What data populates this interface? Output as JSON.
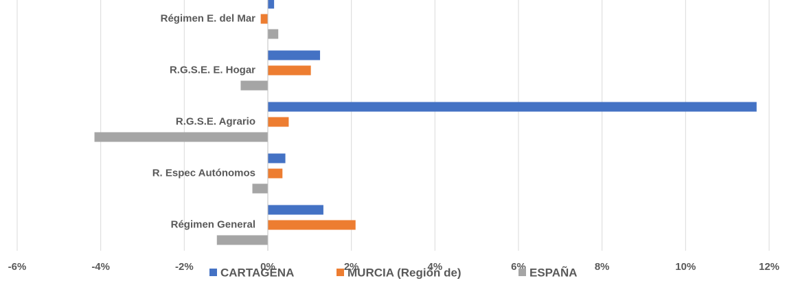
{
  "chart_data": {
    "type": "hbar",
    "categories": [
      "Régimen E. del Mar",
      "R.G.S.E. E. Hogar",
      "R.G.S.E. Agrario",
      "R. Espec  Autónomos",
      "Régimen General"
    ],
    "series": [
      {
        "name": "CARTAGENA",
        "color": "#4472c4",
        "values": [
          0.15,
          1.25,
          11.7,
          0.42,
          1.33
        ]
      },
      {
        "name": "MURCIA (Región de)",
        "color": "#ed7d31",
        "values": [
          -0.17,
          1.03,
          0.5,
          0.35,
          2.1
        ]
      },
      {
        "name": "ESPAÑA",
        "color": "#a5a5a5",
        "values": [
          0.25,
          -0.65,
          -4.15,
          -0.37,
          -1.22
        ]
      }
    ],
    "xlim": [
      -6,
      12
    ],
    "xticks": [
      {
        "value": -6,
        "label": "-6%"
      },
      {
        "value": -4,
        "label": "-4%"
      },
      {
        "value": -2,
        "label": "-2%"
      },
      {
        "value": 0,
        "label": "0%"
      },
      {
        "value": 2,
        "label": "2%"
      },
      {
        "value": 4,
        "label": "4%"
      },
      {
        "value": 6,
        "label": "6%"
      },
      {
        "value": 8,
        "label": "8%"
      },
      {
        "value": 10,
        "label": "10%"
      },
      {
        "value": 12,
        "label": "12%"
      }
    ],
    "grid": true,
    "legend": "bottom"
  }
}
